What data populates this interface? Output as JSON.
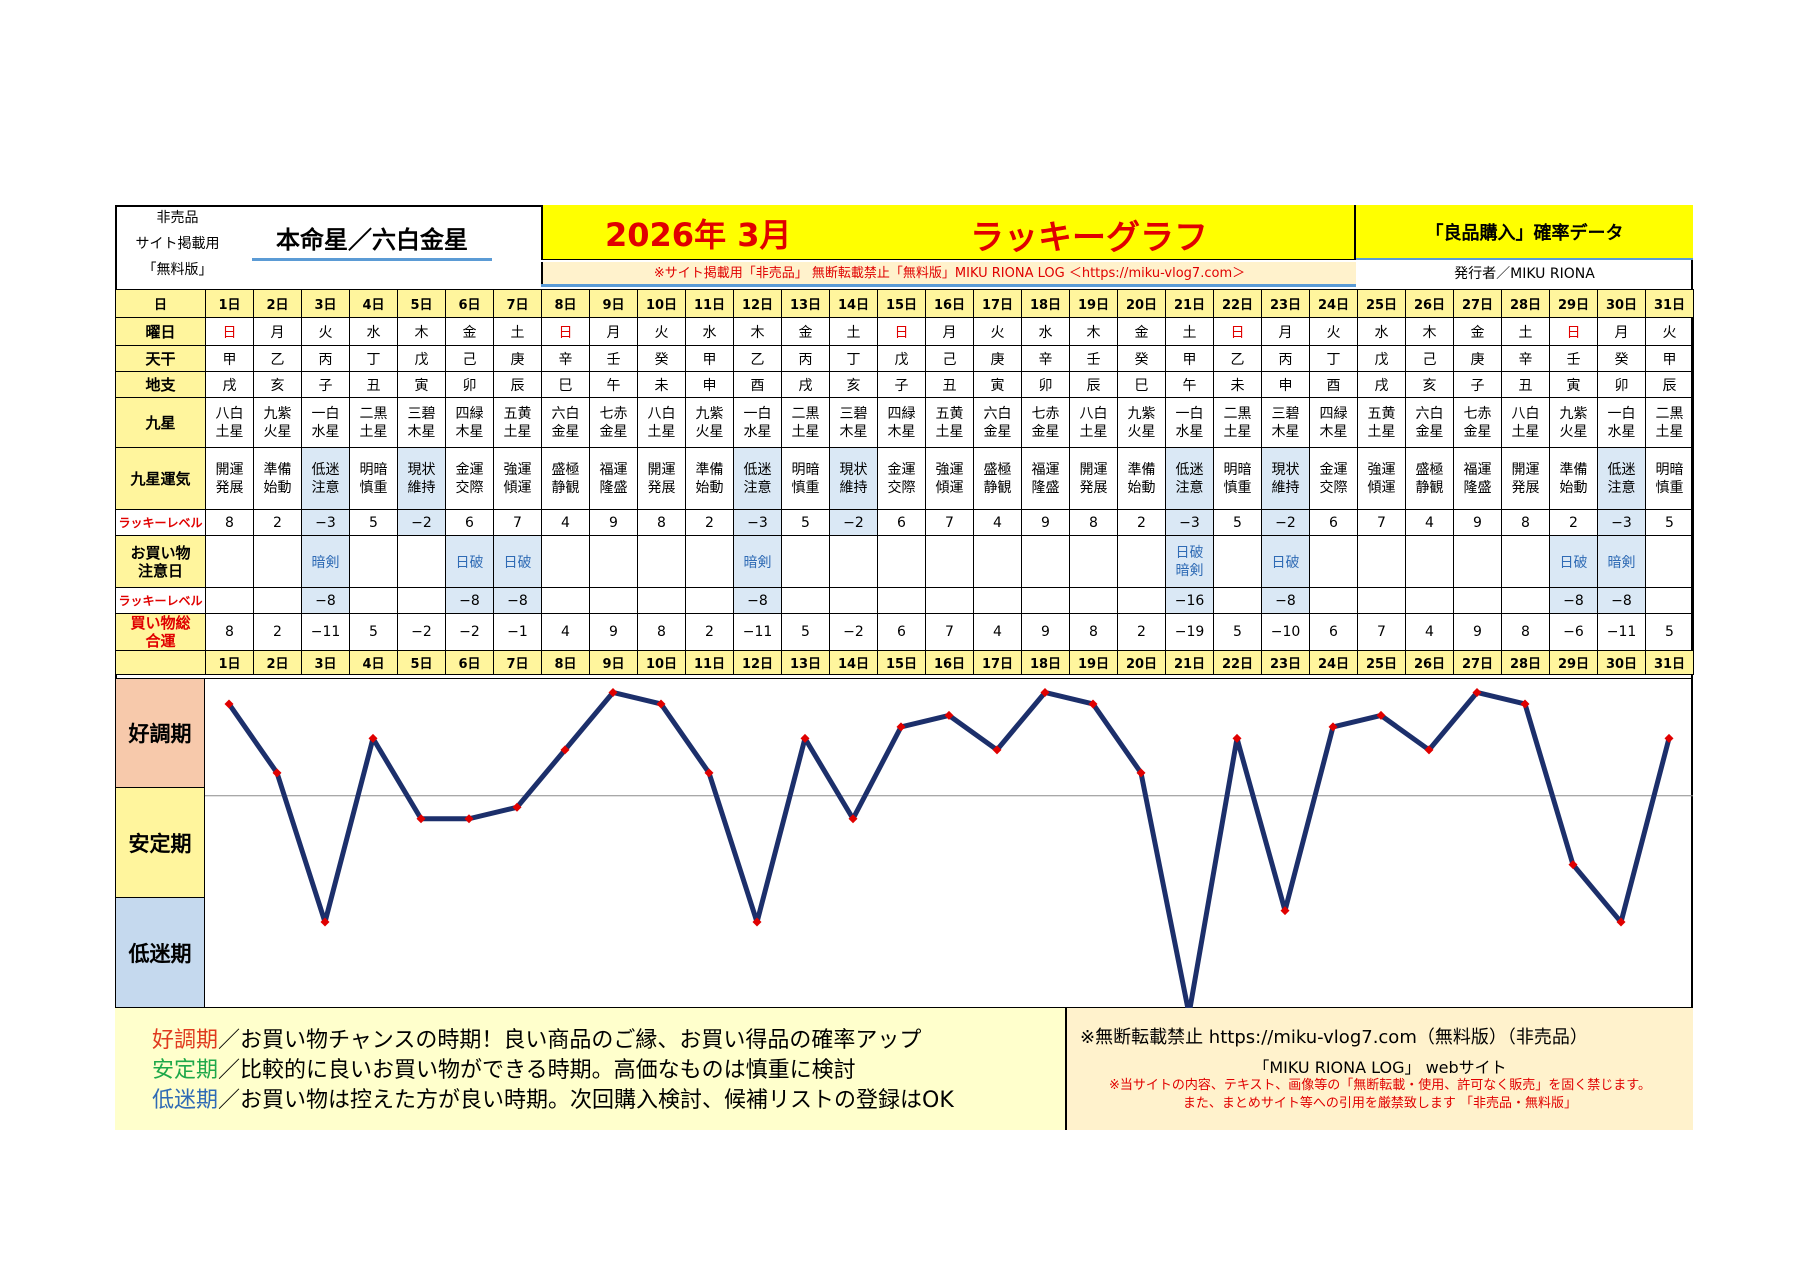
{
  "header": {
    "left_lines": [
      "非売品",
      "サイト掲載用",
      "「無料版」"
    ],
    "honmei": "本命星／六白金星",
    "year_month": "2026年 3月",
    "lucky_graph": "ラッキーグラフ",
    "subtitle": "「良品購入」確率データ",
    "notice": "※サイト掲載用「非売品」 無断転載禁止「無料版」MIKU RIONA LOG ＜https://miku-vlog7.com＞",
    "publisher": "発行者／MIKU RIONA"
  },
  "row_labels": {
    "day": "日",
    "weekday": "曜日",
    "tenkan": "天干",
    "chishi": "地支",
    "kyusei": "九星",
    "kyusei_unki": "九星運気",
    "lucky_level": "ラッキーレベル",
    "shopping_caution": "お買い物注意日",
    "lucky_level2": "ラッキーレベル",
    "shopping_total": "買い物総合運"
  },
  "colors": {
    "line": "#1c2f6b",
    "marker": "#e00000",
    "header_yellow": "#ffff00",
    "cell_yellow": "#fff59d"
  },
  "days": [
    {
      "d": "1日",
      "w": "日",
      "t": "甲",
      "c": "戌",
      "k": "八白土星",
      "u": "開運発展",
      "lv": "8",
      "cau": "",
      "lv2": "",
      "tot": "8"
    },
    {
      "d": "2日",
      "w": "月",
      "t": "乙",
      "c": "亥",
      "k": "九紫火星",
      "u": "準備始動",
      "lv": "2",
      "cau": "",
      "lv2": "",
      "tot": "2"
    },
    {
      "d": "3日",
      "w": "火",
      "t": "丙",
      "c": "子",
      "k": "一白水星",
      "u": "低迷注意",
      "lv": "−3",
      "cau": "暗剣",
      "lv2": "−8",
      "tot": "−11"
    },
    {
      "d": "4日",
      "w": "水",
      "t": "丁",
      "c": "丑",
      "k": "二黒土星",
      "u": "明暗慎重",
      "lv": "5",
      "cau": "",
      "lv2": "",
      "tot": "5"
    },
    {
      "d": "5日",
      "w": "木",
      "t": "戊",
      "c": "寅",
      "k": "三碧木星",
      "u": "現状維持",
      "lv": "−2",
      "cau": "",
      "lv2": "",
      "tot": "−2"
    },
    {
      "d": "6日",
      "w": "金",
      "t": "己",
      "c": "卯",
      "k": "四緑木星",
      "u": "金運交際",
      "lv": "6",
      "cau": "日破",
      "lv2": "−8",
      "tot": "−2"
    },
    {
      "d": "7日",
      "w": "土",
      "t": "庚",
      "c": "辰",
      "k": "五黄土星",
      "u": "強運傾運",
      "lv": "7",
      "cau": "日破",
      "lv2": "−8",
      "tot": "−1"
    },
    {
      "d": "8日",
      "w": "日",
      "t": "辛",
      "c": "巳",
      "k": "六白金星",
      "u": "盛極静観",
      "lv": "4",
      "cau": "",
      "lv2": "",
      "tot": "4"
    },
    {
      "d": "9日",
      "w": "月",
      "t": "壬",
      "c": "午",
      "k": "七赤金星",
      "u": "福運隆盛",
      "lv": "9",
      "cau": "",
      "lv2": "",
      "tot": "9"
    },
    {
      "d": "10日",
      "w": "火",
      "t": "癸",
      "c": "未",
      "k": "八白土星",
      "u": "開運発展",
      "lv": "8",
      "cau": "",
      "lv2": "",
      "tot": "8"
    },
    {
      "d": "11日",
      "w": "水",
      "t": "甲",
      "c": "申",
      "k": "九紫火星",
      "u": "準備始動",
      "lv": "2",
      "cau": "",
      "lv2": "",
      "tot": "2"
    },
    {
      "d": "12日",
      "w": "木",
      "t": "乙",
      "c": "酉",
      "k": "一白水星",
      "u": "低迷注意",
      "lv": "−3",
      "cau": "暗剣",
      "lv2": "−8",
      "tot": "−11"
    },
    {
      "d": "13日",
      "w": "金",
      "t": "丙",
      "c": "戌",
      "k": "二黒土星",
      "u": "明暗慎重",
      "lv": "5",
      "cau": "",
      "lv2": "",
      "tot": "5"
    },
    {
      "d": "14日",
      "w": "土",
      "t": "丁",
      "c": "亥",
      "k": "三碧木星",
      "u": "現状維持",
      "lv": "−2",
      "cau": "",
      "lv2": "",
      "tot": "−2"
    },
    {
      "d": "15日",
      "w": "日",
      "t": "戊",
      "c": "子",
      "k": "四緑木星",
      "u": "金運交際",
      "lv": "6",
      "cau": "",
      "lv2": "",
      "tot": "6"
    },
    {
      "d": "16日",
      "w": "月",
      "t": "己",
      "c": "丑",
      "k": "五黄土星",
      "u": "強運傾運",
      "lv": "7",
      "cau": "",
      "lv2": "",
      "tot": "7"
    },
    {
      "d": "17日",
      "w": "火",
      "t": "庚",
      "c": "寅",
      "k": "六白金星",
      "u": "盛極静観",
      "lv": "4",
      "cau": "",
      "lv2": "",
      "tot": "4"
    },
    {
      "d": "18日",
      "w": "水",
      "t": "辛",
      "c": "卯",
      "k": "七赤金星",
      "u": "福運隆盛",
      "lv": "9",
      "cau": "",
      "lv2": "",
      "tot": "9"
    },
    {
      "d": "19日",
      "w": "木",
      "t": "壬",
      "c": "辰",
      "k": "八白土星",
      "u": "開運発展",
      "lv": "8",
      "cau": "",
      "lv2": "",
      "tot": "8"
    },
    {
      "d": "20日",
      "w": "金",
      "t": "癸",
      "c": "巳",
      "k": "九紫火星",
      "u": "準備始動",
      "lv": "2",
      "cau": "",
      "lv2": "",
      "tot": "2"
    },
    {
      "d": "21日",
      "w": "土",
      "t": "甲",
      "c": "午",
      "k": "一白水星",
      "u": "低迷注意",
      "lv": "−3",
      "cau": "日破暗剣",
      "lv2": "−16",
      "tot": "−19"
    },
    {
      "d": "22日",
      "w": "日",
      "t": "乙",
      "c": "未",
      "k": "二黒土星",
      "u": "明暗慎重",
      "lv": "5",
      "cau": "",
      "lv2": "",
      "tot": "5"
    },
    {
      "d": "23日",
      "w": "月",
      "t": "丙",
      "c": "申",
      "k": "三碧木星",
      "u": "現状維持",
      "lv": "−2",
      "cau": "日破",
      "lv2": "−8",
      "tot": "−10"
    },
    {
      "d": "24日",
      "w": "火",
      "t": "丁",
      "c": "酉",
      "k": "四緑木星",
      "u": "金運交際",
      "lv": "6",
      "cau": "",
      "lv2": "",
      "tot": "6"
    },
    {
      "d": "25日",
      "w": "水",
      "t": "戊",
      "c": "戌",
      "k": "五黄土星",
      "u": "強運傾運",
      "lv": "7",
      "cau": "",
      "lv2": "",
      "tot": "7"
    },
    {
      "d": "26日",
      "w": "木",
      "t": "己",
      "c": "亥",
      "k": "六白金星",
      "u": "盛極静観",
      "lv": "4",
      "cau": "",
      "lv2": "",
      "tot": "4"
    },
    {
      "d": "27日",
      "w": "金",
      "t": "庚",
      "c": "子",
      "k": "七赤金星",
      "u": "福運隆盛",
      "lv": "9",
      "cau": "",
      "lv2": "",
      "tot": "9"
    },
    {
      "d": "28日",
      "w": "土",
      "t": "辛",
      "c": "丑",
      "k": "八白土星",
      "u": "開運発展",
      "lv": "8",
      "cau": "",
      "lv2": "",
      "tot": "8"
    },
    {
      "d": "29日",
      "w": "日",
      "t": "壬",
      "c": "寅",
      "k": "九紫火星",
      "u": "準備始動",
      "lv": "2",
      "cau": "日破",
      "lv2": "−8",
      "tot": "−6"
    },
    {
      "d": "30日",
      "w": "月",
      "t": "癸",
      "c": "卯",
      "k": "一白水星",
      "u": "低迷注意",
      "lv": "−3",
      "cau": "暗剣",
      "lv2": "−8",
      "tot": "−11"
    },
    {
      "d": "31日",
      "w": "火",
      "t": "甲",
      "c": "辰",
      "k": "二黒土星",
      "u": "明暗慎重",
      "lv": "5",
      "cau": "",
      "lv2": "",
      "tot": "5"
    }
  ],
  "chart_data": {
    "type": "line",
    "x": [
      1,
      2,
      3,
      4,
      5,
      6,
      7,
      8,
      9,
      10,
      11,
      12,
      13,
      14,
      15,
      16,
      17,
      18,
      19,
      20,
      21,
      22,
      23,
      24,
      25,
      26,
      27,
      28,
      29,
      30,
      31
    ],
    "y": [
      8,
      2,
      -11,
      5,
      -2,
      -2,
      -1,
      4,
      9,
      8,
      2,
      -11,
      5,
      -2,
      6,
      7,
      4,
      9,
      8,
      2,
      -19,
      5,
      -10,
      6,
      7,
      4,
      9,
      8,
      -6,
      -11,
      5
    ],
    "zones": [
      "好調期",
      "安定期",
      "低迷期"
    ],
    "reference_line": 0
  },
  "legend": {
    "good_key": "好調期",
    "good_text": "／お買い物チャンスの時期！良い商品のご縁、お買い得品の確率アップ",
    "stable_key": "安定期",
    "stable_text": "／比較的に良いお買い物ができる時期。高価なものは慎重に検討",
    "low_key": "低迷期",
    "low_text": "／お買い物は控えた方が良い時期。次回購入検討、候補リストの登録はOK"
  },
  "info": {
    "line1": "※無断転載禁止  https://miku-vlog7.com（無料版）（非売品）",
    "line2": "「MIKU RIONA LOG」 webサイト",
    "line3": "※当サイトの内容、テキスト、画像等の「無断転載・使用、許可なく販売」を固く禁じます。",
    "line4": "また、まとめサイト等への引用を厳禁致します 「非売品・無料版」"
  }
}
